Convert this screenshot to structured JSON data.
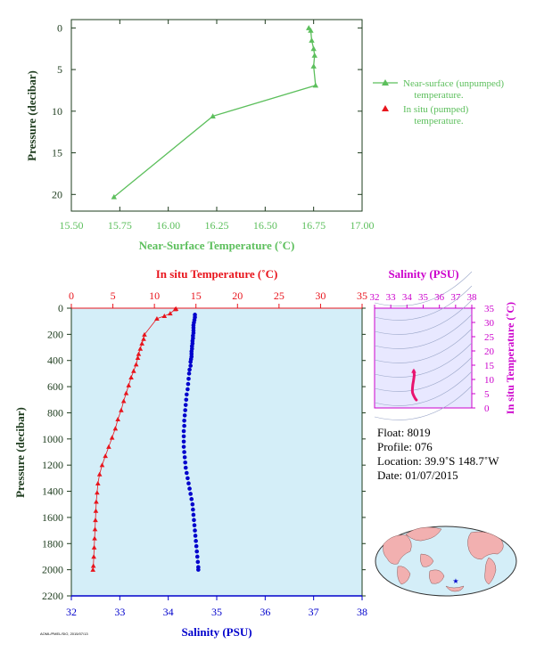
{
  "colors": {
    "near_surface": "#5cbf5c",
    "in_situ_temp": "#e8141c",
    "salinity": "#0000cc",
    "salinity_title": "#cc00cc",
    "axis_dark_green": "#1e3c1e",
    "profile_bg": "#d4eef8",
    "tiny_inset_bg": "#e8e8ff"
  },
  "chart_data": [
    {
      "id": "near-surface",
      "type": "line",
      "xlabel": "Near-Surface Temperature (˚C)",
      "ylabel": "Pressure (decibar)",
      "xlim": [
        15.5,
        17.0
      ],
      "ylim": [
        22,
        -1
      ],
      "x_ticks": [
        "15.50",
        "15.75",
        "16.00",
        "16.25",
        "16.50",
        "16.75",
        "17.00"
      ],
      "y_ticks": [
        "0",
        "5",
        "10",
        "15",
        "20"
      ],
      "series": [
        {
          "name": "Near-surface (unpumped) temperature.",
          "points": [
            [
              16.725,
              0.0
            ],
            [
              16.735,
              0.3
            ],
            [
              16.74,
              1.5
            ],
            [
              16.75,
              2.5
            ],
            [
              16.755,
              3.3
            ],
            [
              16.75,
              4.6
            ],
            [
              16.76,
              6.9
            ],
            [
              16.23,
              10.6
            ],
            [
              15.72,
              20.3
            ]
          ]
        }
      ],
      "legend": [
        {
          "label": "Near-surface (unpumped)",
          "label2": "temperature.",
          "marker": "line-triangle"
        },
        {
          "label": "In situ (pumped)",
          "label2": "temperature.",
          "marker": "triangle"
        }
      ]
    },
    {
      "id": "profile",
      "type": "scatter",
      "top_axis_label": "In situ Temperature (˚C)",
      "bottom_axis_label": "Salinity (PSU)",
      "ylabel": "Pressure (decibar)",
      "temp_xlim": [
        0,
        35
      ],
      "sal_xlim": [
        32,
        38
      ],
      "ylim": [
        2200,
        0
      ],
      "temp_ticks": [
        "0",
        "5",
        "10",
        "15",
        "20",
        "25",
        "30",
        "35"
      ],
      "sal_ticks": [
        "32",
        "33",
        "34",
        "35",
        "36",
        "37",
        "38"
      ],
      "y_ticks": [
        "0",
        "200",
        "400",
        "600",
        "800",
        "1000",
        "1200",
        "1400",
        "1600",
        "1800",
        "2000",
        "2200"
      ],
      "temperature_series": [
        [
          12.6,
          5
        ],
        [
          12.5,
          8
        ],
        [
          11.9,
          40
        ],
        [
          11.2,
          60
        ],
        [
          10.3,
          80
        ],
        [
          8.8,
          202
        ],
        [
          8.7,
          235
        ],
        [
          8.5,
          270
        ],
        [
          8.3,
          310
        ],
        [
          8.1,
          350
        ],
        [
          8.0,
          380
        ],
        [
          7.8,
          430
        ],
        [
          7.5,
          480
        ],
        [
          7.2,
          530
        ],
        [
          6.9,
          590
        ],
        [
          6.6,
          650
        ],
        [
          6.3,
          710
        ],
        [
          6.0,
          780
        ],
        [
          5.6,
          850
        ],
        [
          5.3,
          920
        ],
        [
          4.9,
          990
        ],
        [
          4.5,
          1060
        ],
        [
          4.1,
          1130
        ],
        [
          3.7,
          1200
        ],
        [
          3.4,
          1270
        ],
        [
          3.2,
          1340
        ],
        [
          3.1,
          1410
        ],
        [
          3.0,
          1480
        ],
        [
          2.95,
          1550
        ],
        [
          2.9,
          1620
        ],
        [
          2.85,
          1690
        ],
        [
          2.8,
          1760
        ],
        [
          2.75,
          1830
        ],
        [
          2.7,
          1900
        ],
        [
          2.65,
          1970
        ],
        [
          2.6,
          2000
        ]
      ],
      "salinity_series": [
        [
          34.55,
          50
        ],
        [
          34.55,
          70
        ],
        [
          34.54,
          90
        ],
        [
          34.53,
          110
        ],
        [
          34.52,
          130
        ],
        [
          34.52,
          150
        ],
        [
          34.52,
          170
        ],
        [
          34.52,
          190
        ],
        [
          34.51,
          210
        ],
        [
          34.51,
          230
        ],
        [
          34.5,
          250
        ],
        [
          34.5,
          270
        ],
        [
          34.49,
          290
        ],
        [
          34.49,
          310
        ],
        [
          34.48,
          330
        ],
        [
          34.48,
          350
        ],
        [
          34.48,
          370
        ],
        [
          34.47,
          390
        ],
        [
          34.46,
          410
        ],
        [
          34.46,
          440
        ],
        [
          34.44,
          470
        ],
        [
          34.43,
          500
        ],
        [
          34.42,
          540
        ],
        [
          34.41,
          580
        ],
        [
          34.4,
          620
        ],
        [
          34.38,
          660
        ],
        [
          34.37,
          700
        ],
        [
          34.36,
          740
        ],
        [
          34.35,
          780
        ],
        [
          34.34,
          820
        ],
        [
          34.33,
          860
        ],
        [
          34.33,
          900
        ],
        [
          34.32,
          940
        ],
        [
          34.32,
          980
        ],
        [
          34.32,
          1020
        ],
        [
          34.32,
          1060
        ],
        [
          34.33,
          1100
        ],
        [
          34.34,
          1140
        ],
        [
          34.35,
          1180
        ],
        [
          34.36,
          1220
        ],
        [
          34.38,
          1260
        ],
        [
          34.4,
          1300
        ],
        [
          34.42,
          1340
        ],
        [
          34.44,
          1380
        ],
        [
          34.46,
          1420
        ],
        [
          34.48,
          1460
        ],
        [
          34.5,
          1500
        ],
        [
          34.51,
          1540
        ],
        [
          34.52,
          1580
        ],
        [
          34.53,
          1620
        ],
        [
          34.54,
          1660
        ],
        [
          34.55,
          1700
        ],
        [
          34.56,
          1740
        ],
        [
          34.57,
          1780
        ],
        [
          34.58,
          1820
        ],
        [
          34.59,
          1860
        ],
        [
          34.6,
          1900
        ],
        [
          34.61,
          1940
        ],
        [
          34.62,
          1980
        ],
        [
          34.62,
          2000
        ]
      ]
    },
    {
      "id": "ts-diagram",
      "type": "scatter",
      "title": "Salinity (PSU)",
      "ylabel": "In situ Temperature (˚C)",
      "sal_xlim": [
        32,
        38
      ],
      "temp_ylim": [
        0,
        35
      ],
      "sal_ticks": [
        "32",
        "33",
        "34",
        "35",
        "36",
        "37",
        "38"
      ],
      "temp_ticks": [
        "0",
        "5",
        "10",
        "15",
        "20",
        "25",
        "30",
        "35"
      ],
      "points": [
        [
          34.42,
          13
        ],
        [
          34.45,
          11.5
        ],
        [
          34.4,
          9.5
        ],
        [
          34.36,
          8.2
        ],
        [
          34.34,
          7.0
        ],
        [
          34.33,
          6.0
        ],
        [
          34.35,
          5.2
        ],
        [
          34.4,
          4.5
        ],
        [
          34.46,
          3.8
        ],
        [
          34.52,
          3.2
        ],
        [
          34.58,
          2.8
        ]
      ]
    }
  ],
  "float_info": {
    "float": "Float: 8019",
    "profile": "Profile: 076",
    "location": "Location: 39.9˚S 148.7˚W",
    "date": "Date: 01/07/2015"
  },
  "footer_tiny": "AOML/PMEL/SIO, 2015/07/13",
  "map": {
    "marker_icon": "star-icon"
  }
}
